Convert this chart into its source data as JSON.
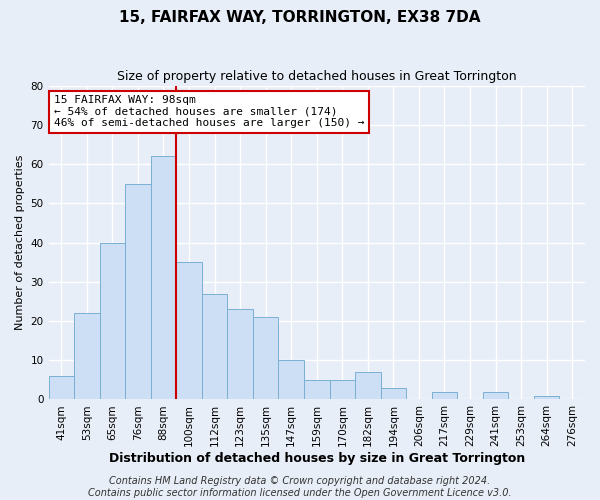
{
  "title": "15, FAIRFAX WAY, TORRINGTON, EX38 7DA",
  "subtitle": "Size of property relative to detached houses in Great Torrington",
  "xlabel": "Distribution of detached houses by size in Great Torrington",
  "ylabel": "Number of detached properties",
  "bar_labels": [
    "41sqm",
    "53sqm",
    "65sqm",
    "76sqm",
    "88sqm",
    "100sqm",
    "112sqm",
    "123sqm",
    "135sqm",
    "147sqm",
    "159sqm",
    "170sqm",
    "182sqm",
    "194sqm",
    "206sqm",
    "217sqm",
    "229sqm",
    "241sqm",
    "253sqm",
    "264sqm",
    "276sqm"
  ],
  "bar_values": [
    6,
    22,
    40,
    55,
    62,
    35,
    27,
    23,
    21,
    10,
    5,
    5,
    7,
    3,
    0,
    2,
    0,
    2,
    0,
    1,
    0
  ],
  "bar_color": "#ccdff5",
  "bar_edge_color": "#7aafd4",
  "vline_color": "#cc0000",
  "vline_x": 4.5,
  "ylim": [
    0,
    80
  ],
  "yticks": [
    0,
    10,
    20,
    30,
    40,
    50,
    60,
    70,
    80
  ],
  "annotation_title": "15 FAIRFAX WAY: 98sqm",
  "annotation_line1": "← 54% of detached houses are smaller (174)",
  "annotation_line2": "46% of semi-detached houses are larger (150) →",
  "annotation_box_color": "#ffffff",
  "annotation_box_edge": "#cc0000",
  "footer_line1": "Contains HM Land Registry data © Crown copyright and database right 2024.",
  "footer_line2": "Contains public sector information licensed under the Open Government Licence v3.0.",
  "background_color": "#e8eef7",
  "grid_color": "#ffffff",
  "title_fontsize": 11,
  "subtitle_fontsize": 9,
  "xlabel_fontsize": 9,
  "ylabel_fontsize": 8,
  "tick_fontsize": 7.5,
  "annotation_fontsize": 8,
  "footer_fontsize": 7
}
